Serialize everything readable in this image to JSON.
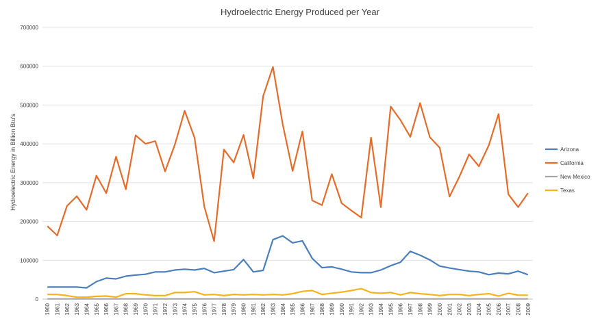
{
  "chart_data": {
    "type": "line",
    "title": "Hydroelectric Energy Produced per Year",
    "xlabel": "",
    "ylabel": "Hydroelectric Energy in Billion Btu's",
    "ylim": [
      0,
      700000
    ],
    "yticks": [
      "0",
      "100000",
      "200000",
      "300000",
      "400000",
      "500000",
      "600000",
      "700000"
    ],
    "grid": true,
    "legend_position": "right",
    "x": [
      "1960",
      "1961",
      "1962",
      "1963",
      "1964",
      "1965",
      "1966",
      "1967",
      "1968",
      "1969",
      "1970",
      "1971",
      "1972",
      "1973",
      "1974",
      "1975",
      "1976",
      "1977",
      "1978",
      "1979",
      "1980",
      "1981",
      "1982",
      "1983",
      "1984",
      "1985",
      "1986",
      "1987",
      "1988",
      "1989",
      "1990",
      "1991",
      "1992",
      "1993",
      "1994",
      "1995",
      "1996",
      "1997",
      "1998",
      "1999",
      "2000",
      "2001",
      "2002",
      "2003",
      "2004",
      "2005",
      "2006",
      "2007",
      "2008",
      "2009"
    ],
    "series": [
      {
        "name": "Arizona",
        "color": "#4a7ebb",
        "values": [
          31000,
          31000,
          31000,
          31000,
          29000,
          45000,
          54000,
          52000,
          59000,
          62000,
          64000,
          70000,
          70000,
          75000,
          77000,
          75000,
          79000,
          68000,
          72000,
          76000,
          102000,
          70000,
          74000,
          153000,
          163000,
          145000,
          150000,
          105000,
          81000,
          83000,
          77000,
          70000,
          68000,
          68000,
          75000,
          86000,
          95000,
          123000,
          113000,
          101000,
          85000,
          80000,
          76000,
          72000,
          70000,
          63000,
          67000,
          65000,
          72000,
          63000
        ]
      },
      {
        "name": "California",
        "color": "#e46c2a",
        "values": [
          188000,
          164000,
          240000,
          265000,
          230000,
          318000,
          273000,
          367000,
          283000,
          422000,
          400000,
          407000,
          329000,
          398000,
          485000,
          416000,
          238000,
          149000,
          385000,
          352000,
          423000,
          311000,
          523000,
          598000,
          450000,
          330000,
          432000,
          254000,
          242000,
          322000,
          247000,
          228000,
          210000,
          416000,
          237000,
          496000,
          461000,
          418000,
          505000,
          417000,
          390000,
          264000,
          315000,
          373000,
          342000,
          396000,
          477000,
          270000,
          237000,
          273000
        ]
      },
      {
        "name": "New Mexico",
        "color": "#a6a6a6",
        "values": [
          500,
          500,
          500,
          500,
          500,
          500,
          500,
          500,
          500,
          500,
          500,
          500,
          500,
          500,
          500,
          500,
          500,
          500,
          500,
          500,
          500,
          500,
          500,
          500,
          500,
          500,
          500,
          500,
          500,
          500,
          500,
          500,
          500,
          500,
          500,
          500,
          500,
          500,
          500,
          500,
          500,
          500,
          500,
          500,
          500,
          500,
          500,
          500,
          500,
          500
        ]
      },
      {
        "name": "Texas",
        "color": "#f6b21a",
        "values": [
          12000,
          12000,
          9000,
          5000,
          5000,
          7000,
          8000,
          5000,
          14000,
          14000,
          11000,
          9000,
          9000,
          17000,
          17000,
          19000,
          11000,
          12000,
          9000,
          12000,
          11000,
          12000,
          11000,
          12000,
          11000,
          14000,
          20000,
          22000,
          12000,
          15000,
          18000,
          22000,
          27000,
          17000,
          15000,
          17000,
          11000,
          17000,
          14000,
          12000,
          9000,
          12000,
          12000,
          9000,
          12000,
          14000,
          8000,
          15000,
          10000,
          10000
        ]
      }
    ]
  }
}
